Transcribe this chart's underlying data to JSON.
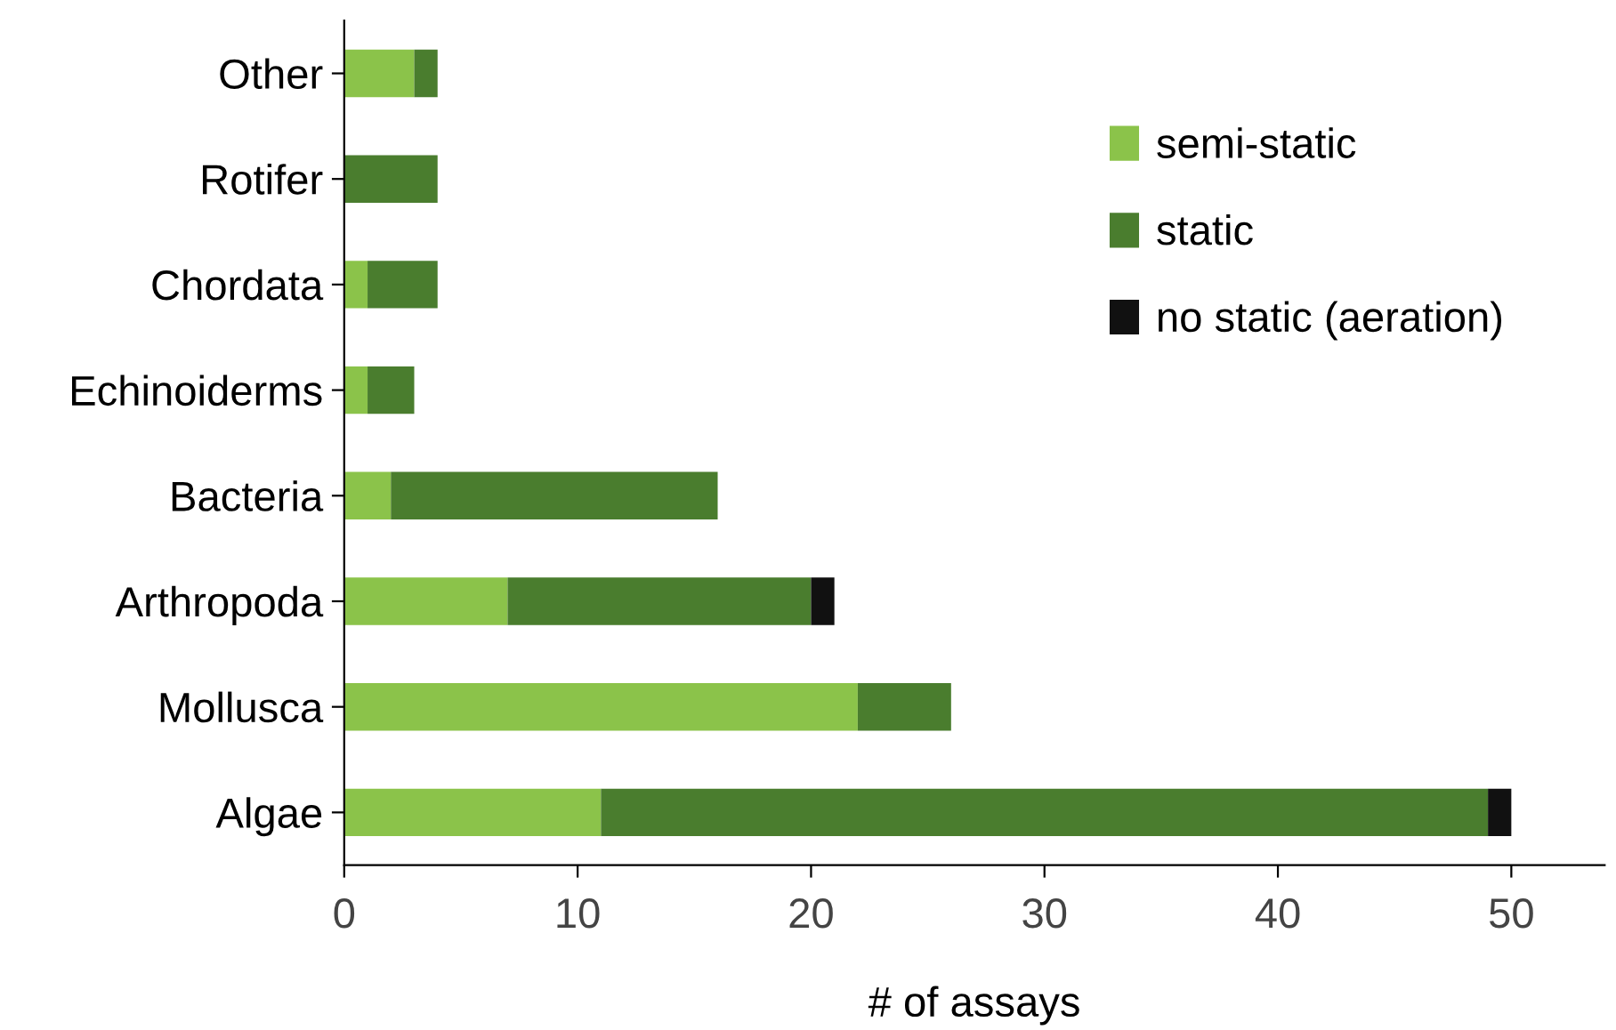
{
  "chart_data": {
    "type": "bar",
    "orientation": "horizontal",
    "stacked": true,
    "xlabel": "# of assays",
    "categories": [
      "Other",
      "Rotifer",
      "Chordata",
      "Echinoiderms",
      "Bacteria",
      "Arthropoda",
      "Mollusca",
      "Algae"
    ],
    "series": [
      {
        "name": "semi-static",
        "color": "#8bc34a",
        "values": [
          3,
          0,
          1,
          1,
          2,
          7,
          22,
          11
        ]
      },
      {
        "name": "static",
        "color": "#4a7d2e",
        "values": [
          1,
          4,
          3,
          2,
          14,
          13,
          4,
          38
        ]
      },
      {
        "name": "no static (aeration)",
        "color": "#111111",
        "values": [
          0,
          0,
          0,
          0,
          0,
          1,
          0,
          1
        ]
      }
    ],
    "xlim": [
      0,
      54
    ],
    "xticks": [
      0,
      10,
      20,
      30,
      40,
      50
    ],
    "grid": false,
    "legend": "top right"
  }
}
